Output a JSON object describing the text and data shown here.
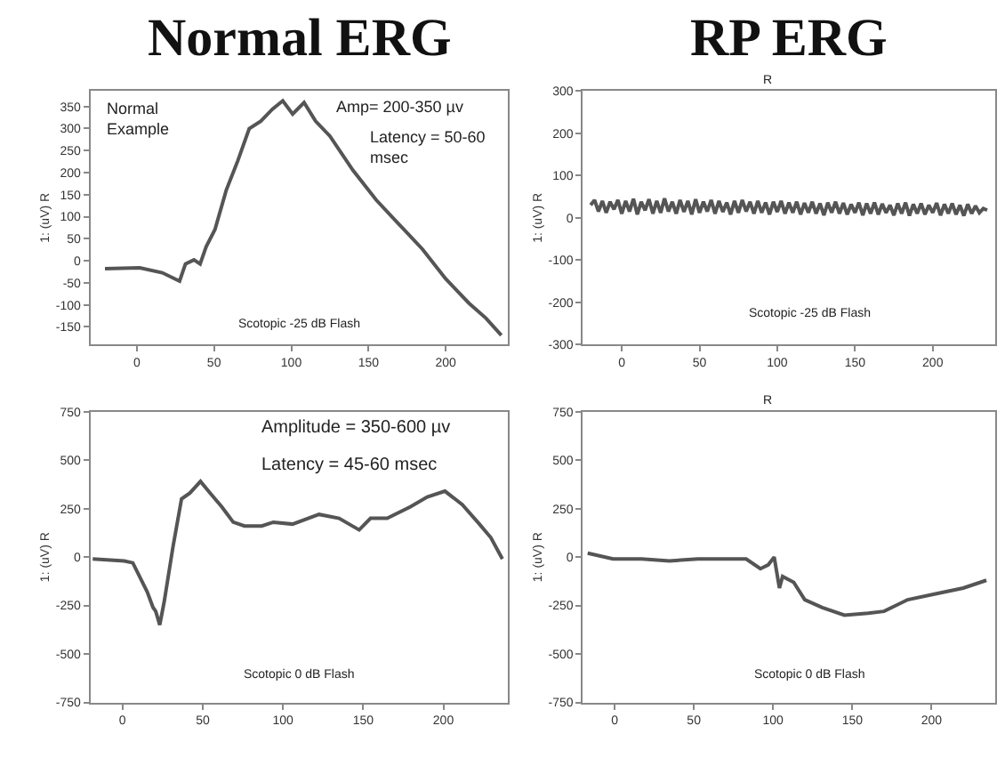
{
  "chart_data": [
    {
      "type": "line",
      "title": "Normal ERG",
      "ylabel": "1: (uV) R",
      "xlim": [
        -30,
        240
      ],
      "xticks": [
        0,
        50,
        100,
        150,
        200
      ],
      "ylim": [
        -190,
        385
      ],
      "yticks": [
        -150,
        -100,
        -50,
        0,
        50,
        100,
        150,
        200,
        250,
        300,
        350
      ],
      "annotations": [
        "Normal\nExample",
        "Amp= 200-350 µv",
        "Latency = 50-60\nmsec",
        "Scotopic -25 dB Flash"
      ],
      "series": [
        {
          "color": "#555555",
          "x": [
            -20.6,
            1.9,
            16.5,
            27.7,
            31.5,
            37,
            41,
            44.9,
            50.6,
            57.9,
            65.4,
            72.8,
            80.3,
            87.8,
            94.5,
            100.9,
            108.3,
            115.7,
            125,
            140,
            155,
            170,
            185,
            200,
            215,
            226,
            236
          ],
          "values": [
            -18,
            -16,
            -27,
            -46,
            -7,
            2,
            -7,
            32,
            71,
            160,
            227,
            300,
            317,
            344,
            363,
            333,
            359,
            317,
            283,
            205,
            138,
            82,
            26,
            -41,
            -96,
            -130,
            -169
          ]
        }
      ]
    },
    {
      "type": "line",
      "title": "RP ERG",
      "ylabel": "1: (uV) R",
      "xlim": [
        -25,
        240
      ],
      "xticks": [
        0,
        50,
        100,
        150,
        200
      ],
      "ylim": [
        -300,
        300
      ],
      "yticks": [
        -300,
        -200,
        -100,
        0,
        100,
        200,
        300
      ],
      "annotations": [
        "R",
        "Scotopic -25 dB Flash"
      ],
      "series": [
        {
          "color": "#555555",
          "x": [
            -20,
            -17.5,
            -15,
            -12.5,
            -10,
            -7.5,
            -5,
            -2.5,
            0,
            2.5,
            5,
            7.5,
            10,
            12.5,
            15,
            17.5,
            20,
            22.5,
            25,
            27.5,
            30,
            32.5,
            35,
            37.5,
            40,
            42.5,
            45,
            47.5,
            50,
            52.5,
            55,
            57.5,
            60,
            62.5,
            65,
            67.5,
            70,
            72.5,
            75,
            77.5,
            80,
            82.5,
            85,
            87.5,
            90,
            92.5,
            95,
            97.5,
            100,
            102.5,
            105,
            107.5,
            110,
            112.5,
            115,
            117.5,
            120,
            122.5,
            125,
            127.5,
            130,
            132.5,
            135,
            137.5,
            140,
            142.5,
            145,
            147.5,
            150,
            152.5,
            155,
            157.5,
            160,
            162.5,
            165,
            167.5,
            170,
            172.5,
            175,
            177.5,
            180,
            182.5,
            185,
            187.5,
            190,
            192.5,
            195,
            197.5,
            200,
            202.5,
            205,
            207.5,
            210,
            212.5,
            215,
            217.5,
            220,
            222.5,
            225,
            227.5,
            230,
            232.5,
            235
          ],
          "values": [
            30,
            42,
            15,
            40,
            12,
            38,
            20,
            42,
            10,
            40,
            15,
            45,
            8,
            38,
            18,
            44,
            10,
            40,
            12,
            46,
            15,
            38,
            10,
            42,
            14,
            40,
            8,
            44,
            12,
            38,
            15,
            42,
            10,
            40,
            14,
            36,
            8,
            40,
            12,
            42,
            15,
            38,
            10,
            40,
            12,
            36,
            8,
            38,
            14,
            40,
            10,
            36,
            12,
            38,
            8,
            35,
            12,
            38,
            10,
            34,
            6,
            36,
            12,
            38,
            10,
            35,
            8,
            32,
            12,
            36,
            6,
            34,
            10,
            36,
            8,
            33,
            12,
            30,
            6,
            34,
            10,
            36,
            5,
            32,
            10,
            34,
            8,
            30,
            12,
            35,
            6,
            32,
            10,
            34,
            8,
            30,
            5,
            32,
            10,
            28,
            12,
            22,
            18
          ]
        }
      ]
    },
    {
      "type": "line",
      "ylabel": "1: (uV) R",
      "xlim": [
        -20,
        240
      ],
      "xticks": [
        0,
        50,
        100,
        150,
        200
      ],
      "ylim": [
        -750,
        750
      ],
      "yticks": [
        -750,
        -500,
        -250,
        0,
        250,
        500,
        750
      ],
      "annotations": [
        "Amplitude = 350-600 µv",
        "Latency = 45-60 msec",
        "Scotopic 0 dB Flash"
      ],
      "series": [
        {
          "color": "#555555",
          "x": [
            -18.6,
            1,
            6.4,
            15.4,
            19,
            20.7,
            23.2,
            26,
            31.4,
            36.8,
            42,
            48.6,
            54.6,
            61.8,
            69,
            76,
            86.8,
            94,
            106,
            122.5,
            135,
            147.5,
            154.6,
            165,
            179.6,
            190,
            201,
            211.8,
            222.5,
            229.6,
            236.8
          ],
          "values": [
            -10,
            -20,
            -30,
            -180,
            -260,
            -280,
            -350,
            -230,
            50,
            300,
            330,
            390,
            330,
            260,
            180,
            160,
            160,
            180,
            170,
            220,
            200,
            140,
            200,
            200,
            260,
            310,
            340,
            270,
            170,
            100,
            -10
          ]
        }
      ]
    },
    {
      "type": "line",
      "ylabel": "1: (uV) R",
      "xlim": [
        -20,
        240
      ],
      "xticks": [
        0,
        50,
        100,
        150,
        200
      ],
      "ylim": [
        -750,
        750
      ],
      "yticks": [
        -750,
        -500,
        -250,
        0,
        250,
        500,
        750
      ],
      "annotations": [
        "R",
        "Scotopic 0 dB Flash"
      ],
      "series": [
        {
          "color": "#555555",
          "x": [
            -17,
            -1,
            17,
            34.6,
            52.5,
            70,
            83,
            92,
            97,
            100.7,
            104,
            106,
            113,
            120,
            131,
            145,
            160,
            170,
            185,
            202.5,
            220,
            234.6
          ],
          "values": [
            20,
            -10,
            -10,
            -20,
            -10,
            -10,
            -10,
            -60,
            -40,
            0,
            -160,
            -100,
            -130,
            -220,
            -260,
            -300,
            -290,
            -280,
            -220,
            -190,
            -160,
            -120
          ]
        }
      ]
    }
  ]
}
